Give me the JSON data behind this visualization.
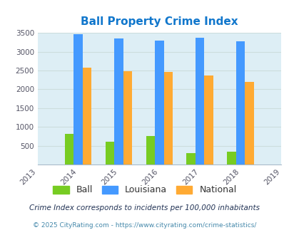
{
  "title": "Ball Property Crime Index",
  "years": [
    2013,
    2014,
    2015,
    2016,
    2017,
    2018,
    2019
  ],
  "data_years": [
    2014,
    2015,
    2016,
    2017,
    2018
  ],
  "ball": [
    820,
    610,
    750,
    310,
    340
  ],
  "louisiana": [
    3460,
    3350,
    3290,
    3380,
    3280
  ],
  "national": [
    2580,
    2490,
    2470,
    2370,
    2190
  ],
  "ball_color": "#77cc22",
  "louisiana_color": "#4499ff",
  "national_color": "#ffaa33",
  "bg_color": "#ddeef5",
  "title_color": "#1177cc",
  "ylim": [
    0,
    3500
  ],
  "yticks": [
    0,
    500,
    1000,
    1500,
    2000,
    2500,
    3000,
    3500
  ],
  "legend_labels": [
    "Ball",
    "Louisiana",
    "National"
  ],
  "footnote1": "Crime Index corresponds to incidents per 100,000 inhabitants",
  "footnote2": "© 2025 CityRating.com - https://www.cityrating.com/crime-statistics/",
  "bar_width": 0.22
}
